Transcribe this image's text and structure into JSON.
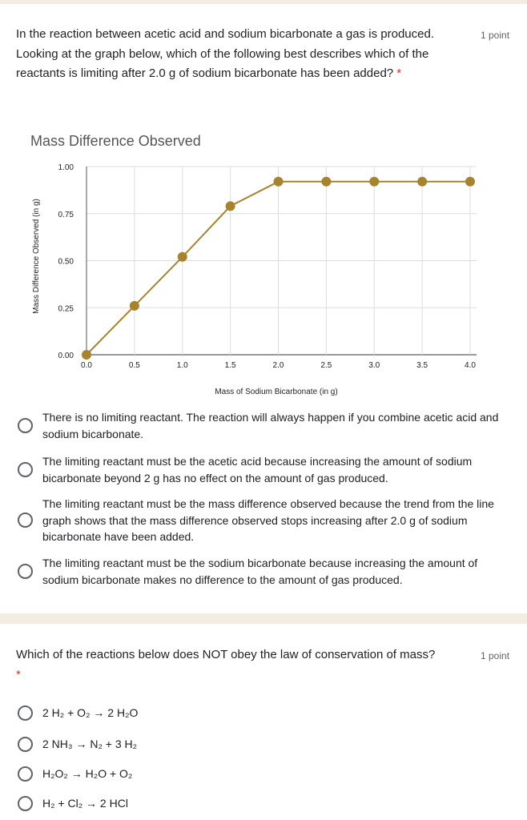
{
  "q1": {
    "text": "In the reaction between acetic acid and sodium bicarbonate a gas is produced. Looking at the graph below, which of the following best describes which of the reactants is limiting after 2.0 g of sodium bicarbonate has been added?",
    "required": "*",
    "points": "1 point",
    "options": [
      "There is no limiting reactant. The reaction will always happen if you combine acetic acid and sodium bicarbonate.",
      "The limiting reactant must be the acetic acid because increasing the amount of sodium bicarbonate beyond 2 g has no effect on the amount of gas produced.",
      "The limiting reactant must be the mass difference observed because the trend from the line graph shows that the mass difference observed stops increasing after 2.0 g of sodium bicarbonate have been added.",
      "The limiting reactant must be the sodium bicarbonate because increasing the amount of sodium bicarbonate makes no difference to the amount of gas produced."
    ]
  },
  "chart_data": {
    "type": "line",
    "title": "Mass Difference Observed",
    "xlabel": "Mass of Sodium Bicarbonate (in g)",
    "ylabel": "Mass Difference Observed (in g)",
    "x": [
      0.0,
      0.5,
      1.0,
      1.5,
      2.0,
      2.5,
      3.0,
      3.5,
      4.0
    ],
    "y": [
      0.0,
      0.26,
      0.52,
      0.79,
      0.92,
      0.92,
      0.92,
      0.92,
      0.92
    ],
    "xticks": [
      "0.0",
      "0.5",
      "1.0",
      "1.5",
      "2.0",
      "2.5",
      "3.0",
      "3.5",
      "4.0"
    ],
    "yticks": [
      "0.00",
      "0.25",
      "0.50",
      "0.75",
      "1.00"
    ],
    "xlim": [
      0,
      4
    ],
    "ylim": [
      0,
      1
    ],
    "grid": true,
    "color": "#a8832f"
  },
  "q2": {
    "text": "Which of the reactions below does NOT obey the law of conservation of mass?",
    "required": "*",
    "points": "1 point",
    "options": [
      "2 H₂ + O₂ → 2 H₂O",
      "2 NH₃ → N₂ + 3 H₂",
      "H₂O₂ → H₂O + O₂",
      "H₂ + Cl₂ → 2 HCl"
    ]
  }
}
